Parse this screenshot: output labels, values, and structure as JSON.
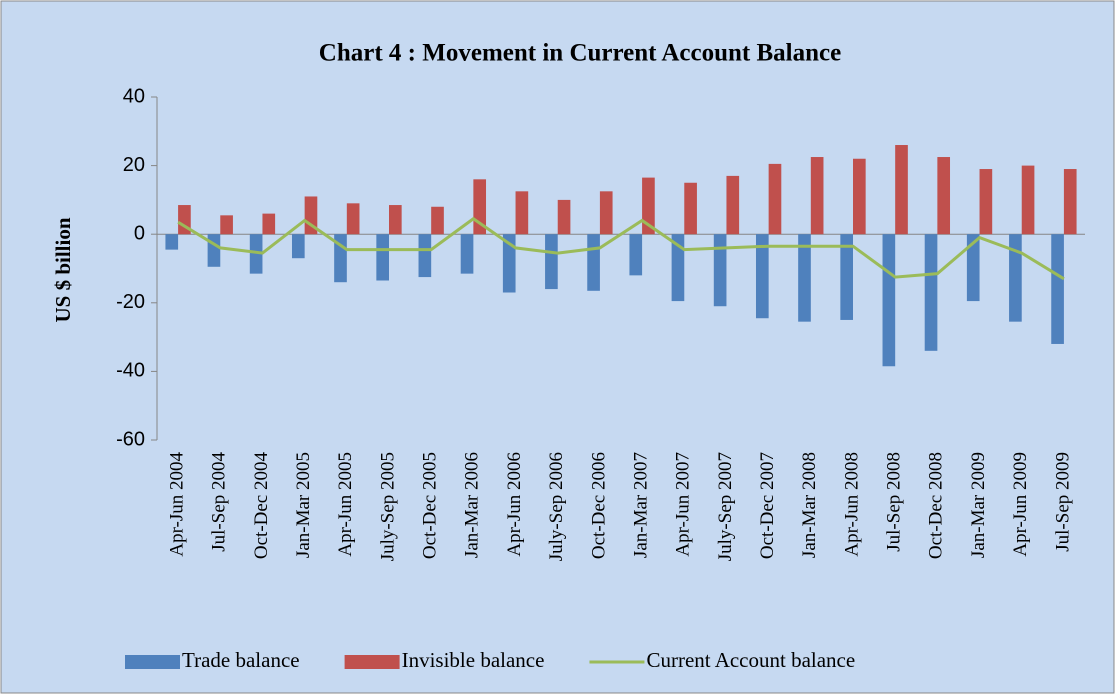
{
  "chart_data": {
    "type": "bar_line",
    "title": "Chart  4 : Movement in Current Account Balance",
    "y_label": "US $ billion",
    "categories": [
      "Apr-Jun 2004",
      "Jul-Sep  2004",
      "Oct-Dec 2004",
      "Jan-Mar 2005",
      "Apr-Jun 2005",
      "July-Sep 2005",
      "Oct-Dec 2005",
      "Jan-Mar 2006",
      "Apr-Jun 2006",
      "July-Sep 2006",
      "Oct-Dec 2006",
      "Jan-Mar 2007",
      "Apr-Jun 2007",
      "July-Sep 2007",
      "Oct-Dec 2007",
      "Jan-Mar 2008",
      "Apr-Jun 2008",
      "Jul-Sep 2008",
      "Oct-Dec 2008",
      "Jan-Mar 2009",
      "Apr-Jun 2009",
      "Jul-Sep 2009"
    ],
    "series": [
      {
        "name": "Trade balance",
        "type": "bar",
        "color": "#4f81bd",
        "values": [
          -4.5,
          -9.5,
          -11.5,
          -7,
          -14,
          -13.5,
          -12.5,
          -11.5,
          -17,
          -16,
          -16.5,
          -12,
          -19.5,
          -21,
          -24.5,
          -25.5,
          -25,
          -38.5,
          -34,
          -19.5,
          -25.5,
          -32
        ]
      },
      {
        "name": "Invisible balance",
        "type": "bar",
        "color": "#c0504d",
        "values": [
          8.5,
          5.5,
          6,
          11,
          9,
          8.5,
          8,
          16,
          12.5,
          10,
          12.5,
          16.5,
          15,
          17,
          20.5,
          22.5,
          22,
          26,
          22.5,
          19,
          20,
          19
        ]
      },
      {
        "name": "Current Account balance",
        "type": "line",
        "color": "#9bbb59",
        "values": [
          3.5,
          -4,
          -5.5,
          4,
          -4.5,
          -4.5,
          -4.5,
          4.5,
          -4,
          -5.5,
          -4,
          4,
          -4.5,
          -4,
          -3.5,
          -3.5,
          -3.5,
          -12.5,
          -11.5,
          -1,
          -5.5,
          -13
        ]
      }
    ],
    "ylim": [
      -60,
      40
    ],
    "yticks": [
      -60,
      -40,
      -20,
      0,
      20,
      40
    ],
    "legend": "bottom"
  }
}
